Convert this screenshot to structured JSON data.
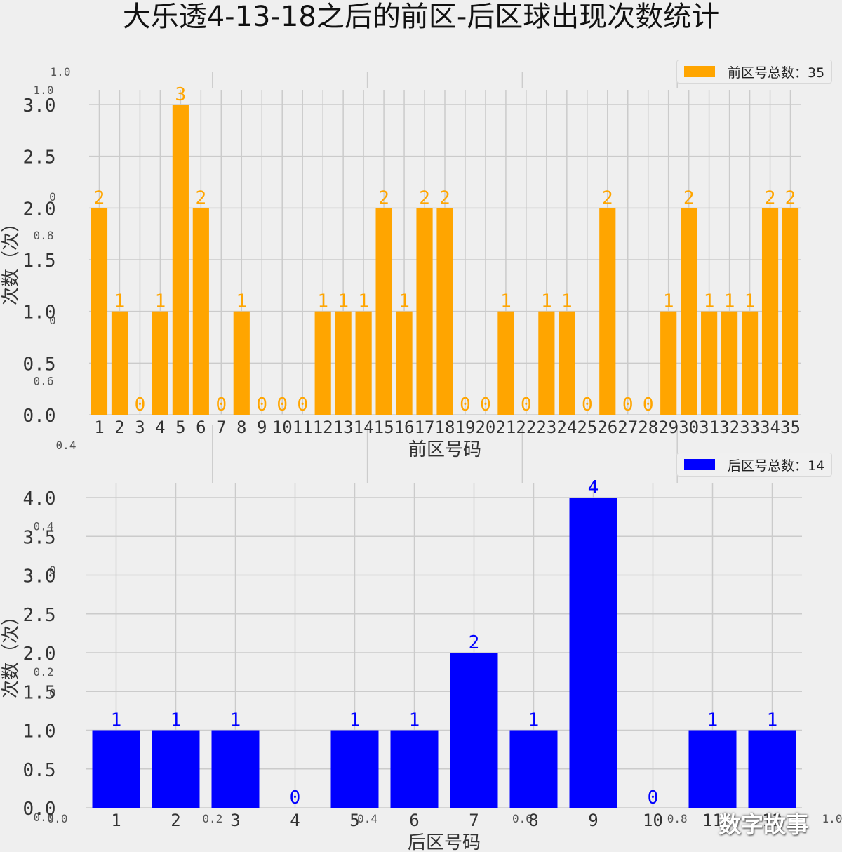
{
  "title": "大乐透4-13-18之后的前区-后区球出现次数统计",
  "watermark": "数字故事",
  "chart_data": [
    {
      "type": "bar",
      "name": "front",
      "color": "#ffa500",
      "legend": "前区号总数：35",
      "legend_position": "top-right",
      "xlabel": "前区号码",
      "ylabel": "次数（次）",
      "ylim": [
        0,
        3.0
      ],
      "yticks": [
        "0.0",
        "0.5",
        "1.0",
        "1.5",
        "2.0",
        "2.5",
        "3.0"
      ],
      "grid": true,
      "categories": [
        "1",
        "2",
        "3",
        "4",
        "5",
        "6",
        "7",
        "8",
        "9",
        "10",
        "11",
        "12",
        "13",
        "14",
        "15",
        "16",
        "17",
        "18",
        "19",
        "20",
        "21",
        "22",
        "23",
        "24",
        "25",
        "26",
        "27",
        "28",
        "29",
        "30",
        "31",
        "32",
        "33",
        "34",
        "35"
      ],
      "values": [
        2,
        1,
        0,
        1,
        3,
        2,
        0,
        1,
        0,
        0,
        0,
        1,
        1,
        1,
        2,
        1,
        2,
        2,
        0,
        0,
        1,
        0,
        1,
        1,
        0,
        2,
        0,
        0,
        1,
        2,
        1,
        1,
        1,
        2,
        2
      ]
    },
    {
      "type": "bar",
      "name": "back",
      "color": "#0000ff",
      "legend": "后区号总数：14",
      "legend_position": "top-right",
      "xlabel": "后区号码",
      "ylabel": "次数（次）",
      "ylim": [
        0,
        4.0
      ],
      "yticks": [
        "0.0",
        "0.5",
        "1.0",
        "1.5",
        "2.0",
        "2.5",
        "3.0",
        "3.5",
        "4.0"
      ],
      "grid": true,
      "categories": [
        "1",
        "2",
        "3",
        "4",
        "5",
        "6",
        "7",
        "8",
        "9",
        "10",
        "11",
        "12"
      ],
      "values": [
        1,
        1,
        1,
        0,
        1,
        1,
        2,
        1,
        4,
        0,
        1,
        1
      ]
    }
  ],
  "background_axis": {
    "yticks": [
      {
        "label": "1.0",
        "value": 1.0
      },
      {
        "label": "0.8",
        "value": 0.8
      },
      {
        "label": "0.6",
        "value": 0.6
      },
      {
        "label": "0.4",
        "value": 0.4
      },
      {
        "label": "0.2",
        "value": 0.2
      },
      {
        "label": "0.0",
        "value": 0.0
      }
    ],
    "xticks": [
      "0.0",
      "0.2",
      "0.4",
      "0.6",
      "0.8",
      "1.0"
    ],
    "stray_labels": [
      "0",
      "0",
      "0",
      "0"
    ]
  }
}
